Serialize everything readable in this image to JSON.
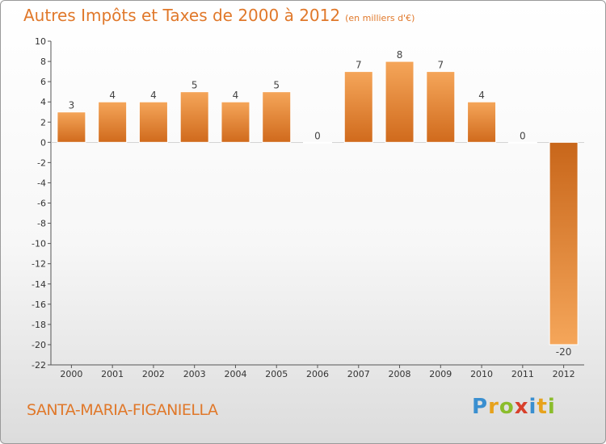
{
  "header": {
    "title": "Autres Impôts et Taxes de 2000 à 2012",
    "unit": "(en milliers d'€)"
  },
  "footer": {
    "commune": "SANTA-MARIA-FIGANIELLA",
    "logo_letters": [
      "P",
      "r",
      "o",
      "x",
      "i",
      "t",
      "i"
    ]
  },
  "colors": {
    "title": "#e0782a",
    "bar_light": "#f5a65a",
    "bar_dark": "#d06a1c",
    "axis": "#555555"
  },
  "chart_data": {
    "type": "bar",
    "title": "Autres Impôts et Taxes de 2000 à 2012",
    "xlabel": "",
    "ylabel": "",
    "categories": [
      "2000",
      "2001",
      "2002",
      "2003",
      "2004",
      "2005",
      "2006",
      "2007",
      "2008",
      "2009",
      "2010",
      "2011",
      "2012"
    ],
    "values": [
      3,
      4,
      4,
      5,
      4,
      5,
      0,
      7,
      8,
      7,
      4,
      0,
      -20
    ],
    "ylim": [
      -22,
      10
    ],
    "yticks": [
      10,
      8,
      6,
      4,
      2,
      0,
      -2,
      -4,
      -6,
      -8,
      -10,
      -12,
      -14,
      -16,
      -18,
      -20,
      -22
    ],
    "grid": false,
    "legend": "none"
  }
}
